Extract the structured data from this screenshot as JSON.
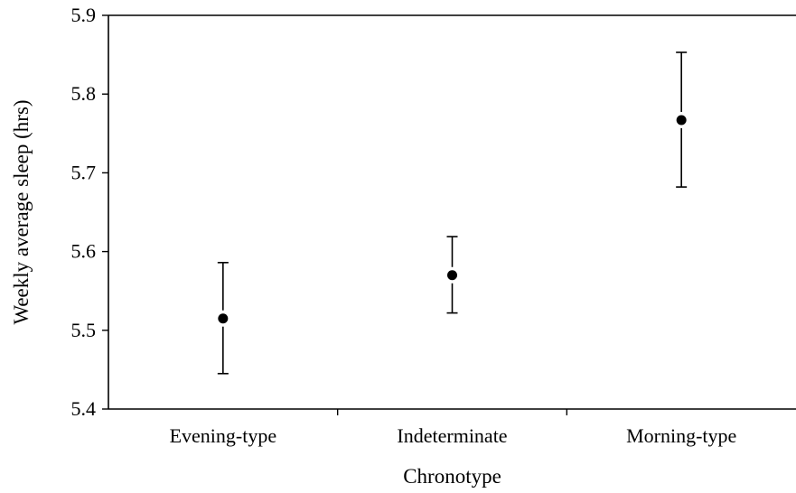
{
  "chart_data": {
    "type": "scatter",
    "title": "",
    "xlabel": "Chronotype",
    "ylabel": "Weekly average sleep (hrs)",
    "categories": [
      "Evening-type",
      "Indeterminate",
      "Morning-type"
    ],
    "ylim": [
      5.4,
      5.9
    ],
    "yticks": [
      "5.4",
      "5.5",
      "5.6",
      "5.7",
      "5.8",
      "5.9"
    ],
    "grid": false,
    "legend": "none",
    "series": [
      {
        "values": [
          5.515,
          5.57,
          5.767
        ],
        "error_low": [
          5.445,
          5.522,
          5.682
        ],
        "error_high": [
          5.586,
          5.619,
          5.853
        ]
      }
    ],
    "colors": {
      "marker": "#000000",
      "axis": "#000000"
    }
  }
}
